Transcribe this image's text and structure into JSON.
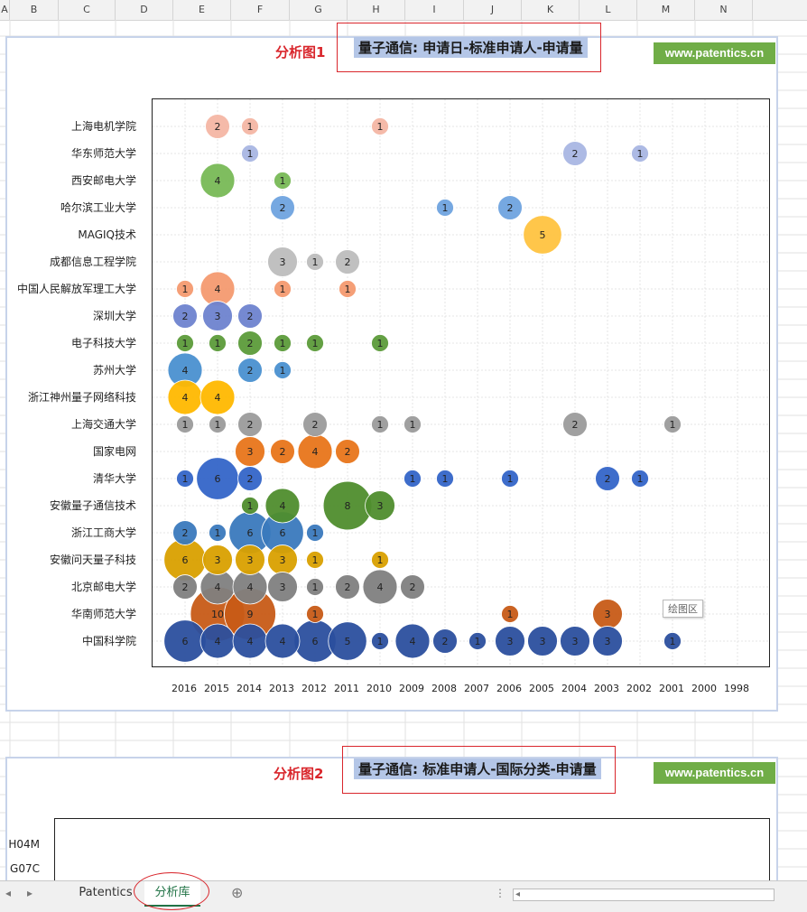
{
  "columns": [
    "A",
    "B",
    "C",
    "D",
    "E",
    "F",
    "G",
    "H",
    "I",
    "J",
    "K",
    "L",
    "M",
    "N"
  ],
  "charts": [
    {
      "label": "分析图1",
      "title": "量子通信: 申请日-标准申请人-申请量",
      "brand": "www.patentics.cn"
    },
    {
      "label": "分析图2",
      "title": "量子通信: 标准申请人-国际分类-申请量",
      "brand": "www.patentics.cn"
    }
  ],
  "chart_data": [
    {
      "type": "scatter",
      "title": "量子通信: 申请日-标准申请人-申请量",
      "x_categories": [
        "2016",
        "2015",
        "2014",
        "2013",
        "2012",
        "2011",
        "2010",
        "2009",
        "2008",
        "2007",
        "2006",
        "2005",
        "2004",
        "2003",
        "2002",
        "2001",
        "2000",
        "1998"
      ],
      "y_categories": [
        "上海电机学院",
        "华东师范大学",
        "西安邮电大学",
        "哈尔滨工业大学",
        "MAGIQ技术",
        "成都信息工程学院",
        "中国人民解放军理工大学",
        "深圳大学",
        "电子科技大学",
        "苏州大学",
        "浙江神州量子网络科技",
        "上海交通大学",
        "国家电网",
        "清华大学",
        "安徽量子通信技术",
        "浙江工商大学",
        "安徽问天量子科技",
        "北京邮电大学",
        "华南师范大学",
        "中国科学院"
      ],
      "series": [
        {
          "name": "上海电机学院",
          "color": "#f4b6a4",
          "points": [
            [
              "2015",
              2
            ],
            [
              "2014",
              1
            ],
            [
              "2010",
              1
            ]
          ]
        },
        {
          "name": "华东师范大学",
          "color": "#a9b6e3",
          "points": [
            [
              "2014",
              1
            ],
            [
              "2004",
              2
            ],
            [
              "2002",
              1
            ]
          ]
        },
        {
          "name": "西安邮电大学",
          "color": "#78b956",
          "points": [
            [
              "2015",
              4
            ],
            [
              "2013",
              1
            ]
          ]
        },
        {
          "name": "哈尔滨工业大学",
          "color": "#6fa3df",
          "points": [
            [
              "2013",
              2
            ],
            [
              "2008",
              1
            ],
            [
              "2006",
              2
            ]
          ]
        },
        {
          "name": "MAGIQ技术",
          "color": "#ffc340",
          "points": [
            [
              "2005",
              5
            ]
          ]
        },
        {
          "name": "成都信息工程学院",
          "color": "#bdbdbd",
          "points": [
            [
              "2013",
              3
            ],
            [
              "2012",
              1
            ],
            [
              "2011",
              2
            ]
          ]
        },
        {
          "name": "中国人民解放军理工大学",
          "color": "#f49a70",
          "points": [
            [
              "2016",
              1
            ],
            [
              "2015",
              4
            ],
            [
              "2013",
              1
            ],
            [
              "2011",
              1
            ]
          ]
        },
        {
          "name": "深圳大学",
          "color": "#6e83cf",
          "points": [
            [
              "2016",
              2
            ],
            [
              "2015",
              3
            ],
            [
              "2014",
              2
            ]
          ]
        },
        {
          "name": "电子科技大学",
          "color": "#5c9b3a",
          "points": [
            [
              "2016",
              1
            ],
            [
              "2015",
              1
            ],
            [
              "2014",
              2
            ],
            [
              "2013",
              1
            ],
            [
              "2012",
              1
            ],
            [
              "2010",
              1
            ]
          ]
        },
        {
          "name": "苏州大学",
          "color": "#4a90d0",
          "points": [
            [
              "2016",
              4
            ],
            [
              "2014",
              2
            ],
            [
              "2013",
              1
            ]
          ]
        },
        {
          "name": "浙江神州量子网络科技",
          "color": "#ffb800",
          "points": [
            [
              "2016",
              4
            ],
            [
              "2015",
              4
            ]
          ]
        },
        {
          "name": "上海交通大学",
          "color": "#9b9b9b",
          "points": [
            [
              "2016",
              1
            ],
            [
              "2015",
              1
            ],
            [
              "2014",
              2
            ],
            [
              "2012",
              2
            ],
            [
              "2010",
              1
            ],
            [
              "2009",
              1
            ],
            [
              "2004",
              2
            ],
            [
              "2001",
              1
            ]
          ]
        },
        {
          "name": "国家电网",
          "color": "#e8751a",
          "points": [
            [
              "2014",
              3
            ],
            [
              "2013",
              2
            ],
            [
              "2012",
              4
            ],
            [
              "2011",
              2
            ]
          ]
        },
        {
          "name": "清华大学",
          "color": "#3465c8",
          "points": [
            [
              "2016",
              1
            ],
            [
              "2015",
              6
            ],
            [
              "2014",
              2
            ],
            [
              "2009",
              1
            ],
            [
              "2008",
              1
            ],
            [
              "2006",
              1
            ],
            [
              "2003",
              2
            ],
            [
              "2002",
              1
            ]
          ]
        },
        {
          "name": "安徽量子通信技术",
          "color": "#4f8d2d",
          "points": [
            [
              "2014",
              1
            ],
            [
              "2013",
              4
            ],
            [
              "2011",
              8
            ],
            [
              "2010",
              3
            ]
          ]
        },
        {
          "name": "浙江工商大学",
          "color": "#3a79bd",
          "points": [
            [
              "2016",
              2
            ],
            [
              "2015",
              1
            ],
            [
              "2014",
              6
            ],
            [
              "2013",
              6
            ],
            [
              "2012",
              1
            ]
          ]
        },
        {
          "name": "安徽问天量子科技",
          "color": "#d9a000",
          "points": [
            [
              "2016",
              6
            ],
            [
              "2015",
              3
            ],
            [
              "2014",
              3
            ],
            [
              "2013",
              3
            ],
            [
              "2012",
              1
            ],
            [
              "2010",
              1
            ]
          ]
        },
        {
          "name": "北京邮电大学",
          "color": "#7f7f7f",
          "points": [
            [
              "2016",
              2
            ],
            [
              "2015",
              4
            ],
            [
              "2014",
              4
            ],
            [
              "2013",
              3
            ],
            [
              "2012",
              1
            ],
            [
              "2011",
              2
            ],
            [
              "2010",
              4
            ],
            [
              "2009",
              2
            ]
          ]
        },
        {
          "name": "华南师范大学",
          "color": "#c75b17",
          "points": [
            [
              "2015",
              10
            ],
            [
              "2014",
              9
            ],
            [
              "2012",
              1
            ],
            [
              "2006",
              1
            ],
            [
              "2003",
              3
            ]
          ]
        },
        {
          "name": "中国科学院",
          "color": "#2b4f9e",
          "points": [
            [
              "2016",
              6
            ],
            [
              "2015",
              4
            ],
            [
              "2014",
              4
            ],
            [
              "2013",
              4
            ],
            [
              "2012",
              6
            ],
            [
              "2011",
              5
            ],
            [
              "2010",
              1
            ],
            [
              "2009",
              4
            ],
            [
              "2008",
              2
            ],
            [
              "2007",
              1
            ],
            [
              "2006",
              3
            ],
            [
              "2005",
              3
            ],
            [
              "2004",
              3
            ],
            [
              "2003",
              3
            ],
            [
              "2001",
              1
            ]
          ]
        }
      ],
      "tooltip": "绘图区"
    },
    {
      "type": "scatter",
      "title": "量子通信: 标准申请人-国际分类-申请量",
      "y_categories": [
        "H04M",
        "G07C"
      ]
    }
  ],
  "tabs": [
    {
      "label": "Patentics",
      "active": false
    },
    {
      "label": "分析库",
      "active": true
    }
  ]
}
